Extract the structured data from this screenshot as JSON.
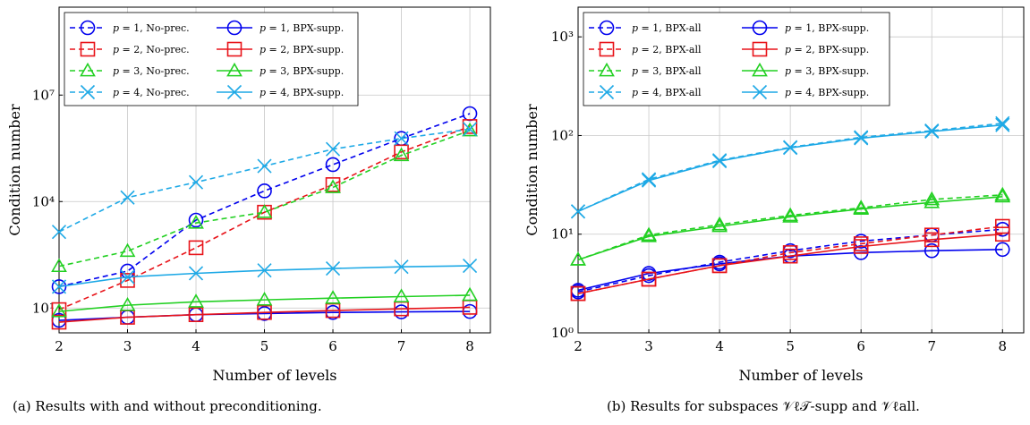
{
  "captions": {
    "a": "(a) Results with and without preconditioning.",
    "b": "(b) Results for subspaces 𝒱ℓ𝒯-supp and 𝒱ℓall."
  },
  "colors": {
    "p1": "#0000ee",
    "p2": "#e8141a",
    "p3": "#22d022",
    "p4": "#1ea9e6"
  },
  "chart_data": [
    {
      "type": "line",
      "xlabel": "Number of levels",
      "ylabel": "Condition number",
      "yscale": "log",
      "x": [
        2,
        3,
        4,
        5,
        6,
        7,
        8
      ],
      "xlim": [
        2,
        8.3
      ],
      "ylim": [
        2,
        3000000000.0
      ],
      "ytick_values": [
        10,
        10000,
        10000000
      ],
      "ytick_labels": [
        "10¹",
        "10⁴",
        "10⁷"
      ],
      "legend_position": "top-left",
      "series": [
        {
          "name": "p = 1, No-prec.",
          "color": "#0000ee",
          "dashed": true,
          "marker": "circle",
          "values": [
            40,
            110,
            3000,
            20000,
            110000,
            600000,
            3000000
          ]
        },
        {
          "name": "p = 1, BPX-supp.",
          "color": "#0000ee",
          "dashed": false,
          "marker": "circle",
          "values": [
            4.5,
            5.5,
            6.5,
            7,
            7.5,
            7.8,
            8
          ]
        },
        {
          "name": "p = 2, No-prec.",
          "color": "#e8141a",
          "dashed": true,
          "marker": "square",
          "values": [
            9,
            60,
            500,
            5000,
            30000,
            250000,
            1300000
          ]
        },
        {
          "name": "p = 2, BPX-supp.",
          "color": "#e8141a",
          "dashed": false,
          "marker": "square",
          "values": [
            4,
            5.5,
            6.5,
            7.5,
            8.5,
            9.5,
            10.5
          ]
        },
        {
          "name": "p = 3, No-prec.",
          "color": "#22d022",
          "dashed": true,
          "marker": "triangle",
          "values": [
            150,
            400,
            2500,
            5000,
            25000,
            200000,
            1000000
          ]
        },
        {
          "name": "p = 3, BPX-supp.",
          "color": "#22d022",
          "dashed": false,
          "marker": "triangle",
          "values": [
            8,
            12,
            15,
            17,
            19,
            21,
            23
          ]
        },
        {
          "name": "p = 4, No-prec.",
          "color": "#1ea9e6",
          "dashed": true,
          "marker": "cross",
          "values": [
            1400,
            13000,
            35000,
            100000,
            300000,
            600000,
            1100000
          ]
        },
        {
          "name": "p = 4, BPX-supp.",
          "color": "#1ea9e6",
          "dashed": false,
          "marker": "cross",
          "values": [
            40,
            75,
            95,
            115,
            130,
            145,
            155
          ]
        }
      ]
    },
    {
      "type": "line",
      "xlabel": "Number of levels",
      "ylabel": "Condition number",
      "yscale": "log",
      "x": [
        2,
        3,
        4,
        5,
        6,
        7,
        8
      ],
      "xlim": [
        2,
        8.3
      ],
      "ylim": [
        1,
        2000
      ],
      "ytick_values": [
        1,
        10,
        100,
        1000
      ],
      "ytick_labels": [
        "10⁰",
        "10¹",
        "10²",
        "10³"
      ],
      "legend_position": "top-left",
      "series": [
        {
          "name": "p = 1, BPX-all",
          "color": "#0000ee",
          "dashed": true,
          "marker": "circle",
          "values": [
            2.6,
            3.8,
            5.2,
            6.8,
            8.5,
            9.8,
            11.2
          ]
        },
        {
          "name": "p = 1, BPX-supp.",
          "color": "#0000ee",
          "dashed": false,
          "marker": "circle",
          "values": [
            2.7,
            4.0,
            5.0,
            6.0,
            6.5,
            6.8,
            7.0
          ]
        },
        {
          "name": "p = 2, BPX-all",
          "color": "#e8141a",
          "dashed": true,
          "marker": "square",
          "values": [
            2.5,
            3.5,
            4.8,
            6.5,
            8.0,
            9.8,
            12.0
          ]
        },
        {
          "name": "p = 2, BPX-supp.",
          "color": "#e8141a",
          "dashed": false,
          "marker": "square",
          "values": [
            2.5,
            3.5,
            4.8,
            6.0,
            7.5,
            8.8,
            10.0
          ]
        },
        {
          "name": "p = 3, BPX-all",
          "color": "#22d022",
          "dashed": true,
          "marker": "triangle",
          "values": [
            5.5,
            9.8,
            12.5,
            15.5,
            18.5,
            22.5,
            25.0
          ]
        },
        {
          "name": "p = 3, BPX-supp.",
          "color": "#22d022",
          "dashed": false,
          "marker": "triangle",
          "values": [
            5.5,
            9.5,
            12.0,
            15.0,
            18.0,
            21.0,
            24.0
          ]
        },
        {
          "name": "p = 4, BPX-all",
          "color": "#1ea9e6",
          "dashed": true,
          "marker": "cross",
          "values": [
            17,
            36,
            56,
            76,
            96,
            112,
            133
          ]
        },
        {
          "name": "p = 4, BPX-supp.",
          "color": "#1ea9e6",
          "dashed": false,
          "marker": "cross",
          "values": [
            17,
            35,
            55,
            75,
            94,
            110,
            128
          ]
        }
      ]
    }
  ]
}
